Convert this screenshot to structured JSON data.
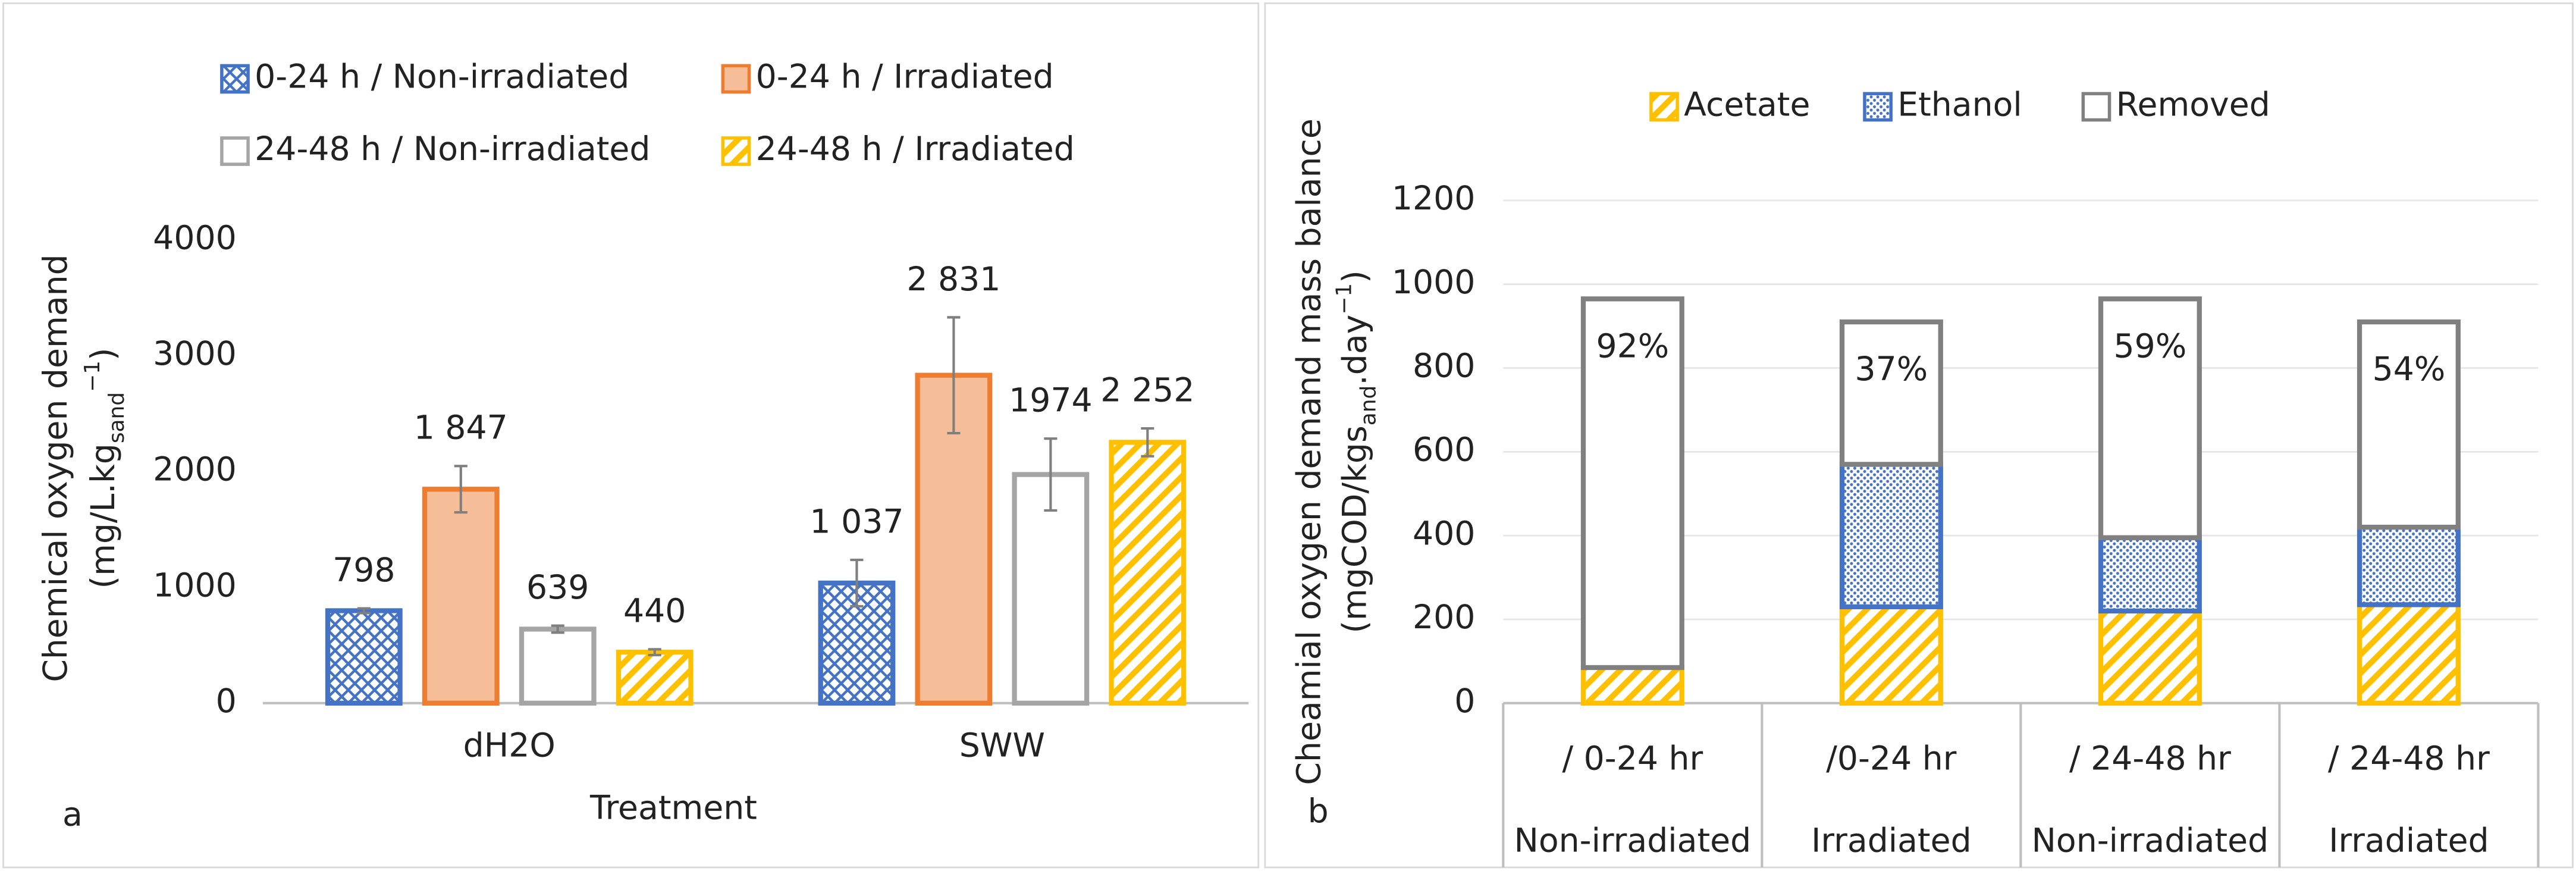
{
  "chart_data": [
    {
      "type": "bar",
      "categories": [
        "dH2O",
        "SWW"
      ],
      "series": [
        {
          "name": "0-24 h / Non-irradiated",
          "color": "#4472c4",
          "fill": "crosshatch",
          "values": [
            798,
            1037
          ],
          "value_labels": [
            "798",
            "1 037"
          ],
          "errors": [
            20,
            200
          ]
        },
        {
          "name": "0-24 h / Irradiated",
          "color": "#ed7d31",
          "fill": "solid",
          "values": [
            1847,
            2831
          ],
          "value_labels": [
            "1 847",
            "2 831"
          ],
          "errors": [
            200,
            500
          ]
        },
        {
          "name": "24-48 h / Non-irradiated",
          "color": "#a5a5a5",
          "fill": "none",
          "values": [
            639,
            1974
          ],
          "errors": [
            30,
            310
          ]
        },
        {
          "name": "24-48 h / Irradiated",
          "color": "#ffc000",
          "fill": "diagonal",
          "values": [
            440,
            2252
          ],
          "value_labels": [
            "440",
            "2 252"
          ],
          "errors": [
            25,
            120
          ]
        }
      ],
      "ylim": [
        0,
        4000
      ],
      "yticks": [
        0,
        1000,
        2000,
        3000,
        4000
      ],
      "grid": false,
      "ylabel": "Chemical oxygen demand",
      "ylabel_units": [
        "(mg/L.kg",
        "sand",
        "−1",
        ")"
      ],
      "xlabel": "Treatment",
      "panel_label": "a",
      "legend": "top"
    },
    {
      "type": "stacked_bar",
      "categories": [
        "/ 0-24 hr",
        "/0-24 hr",
        "/ 24-48 hr",
        "/ 24-48 hr"
      ],
      "category_sublabels": [
        "Non-irradiated",
        "Irradiated",
        "Non-irradiated",
        "Irradiated"
      ],
      "series": [
        {
          "name": "Acetate",
          "color": "#ffc000",
          "fill": "diagonal",
          "values": [
            85,
            230,
            220,
            235
          ]
        },
        {
          "name": "Ethanol",
          "color": "#4472c4",
          "fill": "dots",
          "values": [
            0,
            340,
            175,
            185
          ]
        },
        {
          "name": "Removed",
          "color": "#808080",
          "fill": "none",
          "values": [
            880,
            340,
            570,
            490
          ]
        }
      ],
      "annotations": [
        "92%",
        "37%",
        "59%",
        "54%"
      ],
      "ylim": [
        0,
        1200
      ],
      "yticks": [
        0,
        200,
        400,
        600,
        800,
        1000,
        1200
      ],
      "grid": true,
      "ylabel": "Cheamial oxygen demand mass balance",
      "ylabel_units": [
        "(mgCOD/kgs",
        "and",
        ".day",
        "−1",
        ")"
      ],
      "panel_label": "b",
      "legend": "top"
    }
  ]
}
